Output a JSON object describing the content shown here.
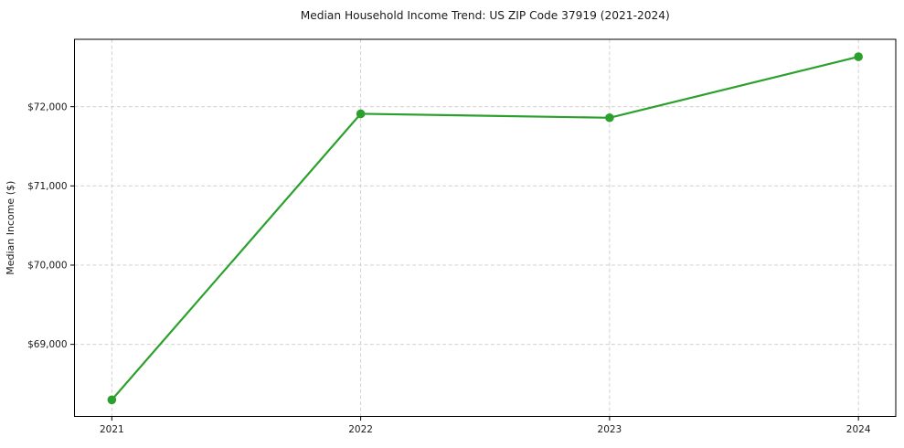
{
  "chart_data": {
    "type": "line",
    "title": "Median Household Income Trend: US ZIP Code 37919 (2021-2024)",
    "xlabel": "",
    "ylabel": "Median Income ($)",
    "x": [
      2021,
      2022,
      2023,
      2024
    ],
    "categories": [
      "2021",
      "2022",
      "2023",
      "2024"
    ],
    "values": [
      68300,
      71910,
      71860,
      72630
    ],
    "series": [
      {
        "name": "Median Household Income",
        "values": [
          68300,
          71910,
          71860,
          72630
        ]
      }
    ],
    "xlim": [
      2020.85,
      2024.15
    ],
    "ylim": [
      68090,
      72850
    ],
    "xticks": [
      2021,
      2022,
      2023,
      2024
    ],
    "xtick_labels": [
      "2021",
      "2022",
      "2023",
      "2024"
    ],
    "yticks": [
      69000,
      70000,
      71000,
      72000
    ],
    "ytick_labels": [
      "$69,000",
      "$70,000",
      "$71,000",
      "$72,000"
    ],
    "grid": true,
    "legend": "none",
    "style": {
      "line_color": "#2ca02c",
      "marker": "circle",
      "marker_radius": 4.8,
      "line_width": 2.2,
      "grid_color": "#cccccc",
      "grid_dash": "4 2.6",
      "spine_color": "#000000",
      "background": "#ffffff"
    }
  }
}
